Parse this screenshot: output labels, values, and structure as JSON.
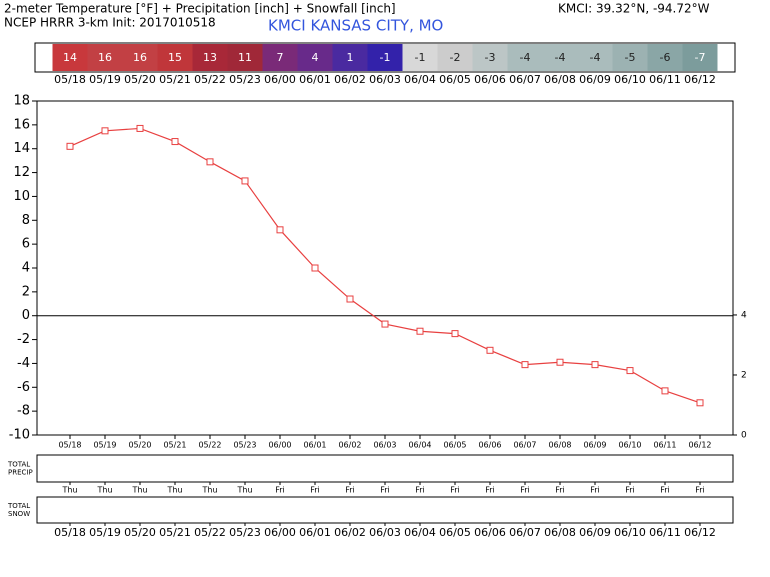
{
  "chart_data": {
    "type": "line",
    "title": "2-meter Temperature [°F] + Precipitation [inch] + Snowfall [inch]",
    "subtitle": "NCEP HRRR 3-km Init: 2017010518",
    "station": "KMCI KANSAS CITY, MO",
    "location": "KMCI: 39.32°N, -94.72°W",
    "categories": [
      "05/18",
      "05/19",
      "05/20",
      "05/21",
      "05/22",
      "05/23",
      "06/00",
      "06/01",
      "06/02",
      "06/03",
      "06/04",
      "06/05",
      "06/06",
      "06/07",
      "06/08",
      "06/09",
      "06/10",
      "06/11",
      "06/12"
    ],
    "weekdays": [
      "Thu",
      "Thu",
      "Thu",
      "Thu",
      "Thu",
      "Thu",
      "Fri",
      "Fri",
      "Fri",
      "Fri",
      "Fri",
      "Fri",
      "Fri",
      "Fri",
      "Fri",
      "Fri",
      "Fri",
      "Fri",
      "Fri"
    ],
    "series": [
      {
        "name": "2-meter Temperature",
        "color": "#e84040",
        "values": [
          14.2,
          15.5,
          15.7,
          14.6,
          12.9,
          11.3,
          7.2,
          4.0,
          1.4,
          -0.7,
          -1.3,
          -1.5,
          -2.9,
          -4.1,
          -3.9,
          -4.1,
          -4.6,
          -6.3,
          -7.3
        ],
        "value_labels": [
          "14",
          "16",
          "16",
          "15",
          "13",
          "11",
          "7",
          "4",
          "1",
          "-1",
          "-1",
          "-2",
          "-3",
          "-4",
          "-4",
          "-4",
          "-5",
          "-6",
          "-7"
        ],
        "label_colors": [
          "#c8383c",
          "#c24044",
          "#c24044",
          "#c0363a",
          "#a82838",
          "#a02838",
          "#7a2a78",
          "#682a8a",
          "#4a2aa0",
          "#3322aa",
          "#d8d8d8",
          "#cccccc",
          "#bcc6c6",
          "#aabcbc",
          "#aabcbc",
          "#aabcbc",
          "#9cb2b2",
          "#8aa6a6",
          "#7c9c9c"
        ]
      }
    ],
    "ylim": [
      -10,
      18
    ],
    "yticks": [
      -10,
      -8,
      -6,
      -4,
      -2,
      0,
      2,
      4,
      6,
      8,
      10,
      12,
      14,
      16,
      18
    ],
    "y2lim": [
      0,
      11.13
    ],
    "y2ticks": [
      0,
      2,
      4
    ],
    "panels": [
      [
        "TOTAL",
        "PRECIP"
      ],
      [
        "TOTAL",
        "SNOW"
      ]
    ]
  }
}
